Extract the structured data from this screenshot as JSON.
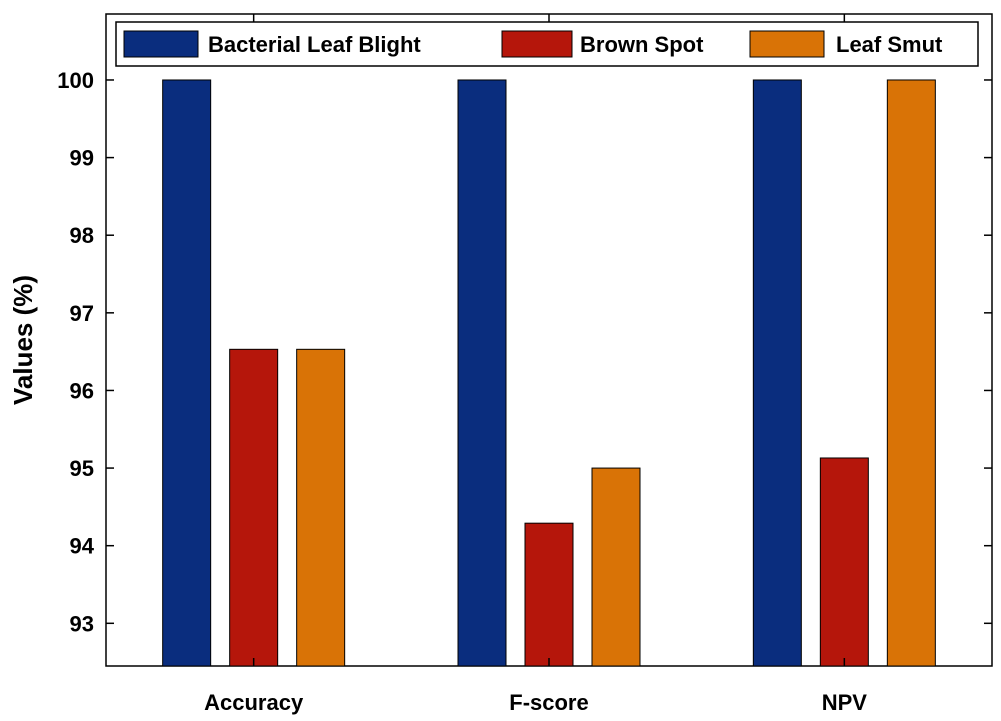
{
  "chart_data": {
    "type": "bar",
    "title": "",
    "xlabel": "",
    "ylabel": "Values (%)",
    "categories": [
      "Accuracy",
      "F-score",
      "NPV"
    ],
    "series": [
      {
        "name": "Bacterial Leaf Blight",
        "color": "#0a2d7e",
        "values": [
          100,
          100,
          100
        ]
      },
      {
        "name": "Brown Spot",
        "color": "#b5160b",
        "values": [
          96.53,
          94.29,
          95.13
        ]
      },
      {
        "name": "Leaf Smut",
        "color": "#d97306",
        "values": [
          96.53,
          95.0,
          100
        ]
      }
    ],
    "ylim": [
      92.45,
      100.85
    ],
    "yticks": [
      93,
      94,
      95,
      96,
      97,
      98,
      99,
      100
    ],
    "grid": false,
    "legend_position": "top"
  }
}
